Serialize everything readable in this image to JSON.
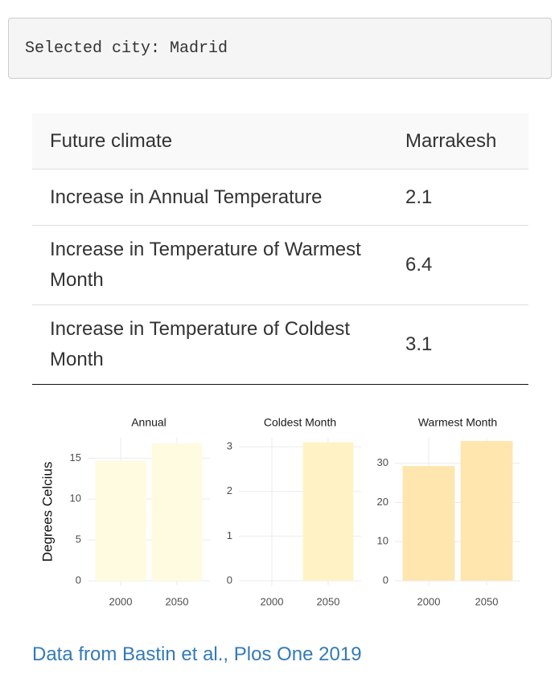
{
  "selected": "Selected city: Madrid",
  "table": {
    "header": [
      "Future climate",
      "Marrakesh"
    ],
    "rows": [
      [
        "Increase in Annual Temperature",
        2.1
      ],
      [
        "Increase in Temperature of Warmest Month",
        6.4
      ],
      [
        "Increase in Temperature of Coldest Month",
        3.1
      ]
    ]
  },
  "chart_data": [
    {
      "type": "bar",
      "title": "Annual",
      "ylabel": "Degrees Celcius",
      "categories": [
        "2000",
        "2050"
      ],
      "values": [
        14.7,
        16.8
      ],
      "color": "#fffbe0",
      "ylim": [
        0,
        17.5
      ],
      "yticks": [
        0,
        5,
        10,
        15
      ],
      "grid": true
    },
    {
      "type": "bar",
      "title": "Coldest Month",
      "categories": [
        "2000",
        "2050"
      ],
      "values": [
        0,
        3.1
      ],
      "color": "#fff3c6",
      "ylim": [
        0,
        3.2
      ],
      "yticks": [
        0,
        1,
        2,
        3
      ],
      "grid": true
    },
    {
      "type": "bar",
      "title": "Warmest Month",
      "categories": [
        "2000",
        "2050"
      ],
      "values": [
        29.3,
        35.7
      ],
      "color": "#fee6ae",
      "ylim": [
        0,
        36.5
      ],
      "yticks": [
        0,
        10,
        20,
        30
      ],
      "grid": true
    }
  ],
  "source": "Data from Bastin et al., Plos One 2019"
}
